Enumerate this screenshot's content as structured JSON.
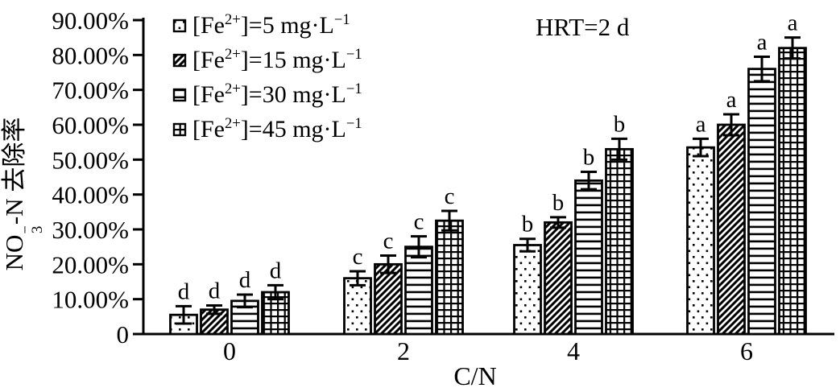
{
  "figure": {
    "annotation": "HRT=2 d",
    "x_axis_label": "C/N",
    "y_axis_label": {
      "pre": "NO",
      "sub": "3",
      "sup": "−",
      "post": "-N 去除率"
    }
  },
  "legend": {
    "items": [
      {
        "pattern": "dots",
        "pre": "[Fe",
        "sup1": "2+",
        "mid": "]=5 mg·L",
        "sup2": "−1"
      },
      {
        "pattern": "diag",
        "pre": "[Fe",
        "sup1": "2+",
        "mid": "]=15 mg·L",
        "sup2": "−1"
      },
      {
        "pattern": "hlines",
        "pre": "[Fe",
        "sup1": "2+",
        "mid": "]=30 mg·L",
        "sup2": "−1"
      },
      {
        "pattern": "grid",
        "pre": "[Fe",
        "sup1": "2+",
        "mid": "]=45 mg·L",
        "sup2": "−1"
      }
    ]
  },
  "chart_data": {
    "type": "bar",
    "title": "",
    "xlabel": "C/N",
    "ylabel": "NO3−-N 去除率",
    "annotation": "HRT=2 d",
    "categories": [
      "0",
      "2",
      "4",
      "6"
    ],
    "ylim": [
      0,
      90
    ],
    "yunit": "%",
    "ytick_labels": [
      "0",
      "10.00%",
      "20.00%",
      "30.00%",
      "40.00%",
      "50.00%",
      "60.00%",
      "70.00%",
      "80.00%",
      "90.00%"
    ],
    "grid": false,
    "legend_position": "upper-left-inside",
    "series": [
      {
        "key": "fe5",
        "name": "[Fe2+]=5 mg·L−1",
        "pattern": "dots",
        "values": [
          5.5,
          16.0,
          25.5,
          53.5
        ],
        "errors": [
          2.5,
          2.0,
          1.8,
          2.5
        ],
        "letters": [
          "d",
          "c",
          "b",
          "a"
        ]
      },
      {
        "key": "fe15",
        "name": "[Fe2+]=15 mg·L−1",
        "pattern": "diag",
        "values": [
          7.0,
          20.0,
          32.0,
          60.0
        ],
        "errors": [
          1.2,
          2.5,
          1.5,
          3.0
        ],
        "letters": [
          "d",
          "c",
          "b",
          "a"
        ]
      },
      {
        "key": "fe30",
        "name": "[Fe2+]=30 mg·L−1",
        "pattern": "hlines",
        "values": [
          9.5,
          25.0,
          44.0,
          76.0
        ],
        "errors": [
          1.8,
          3.0,
          2.5,
          3.5
        ],
        "letters": [
          "d",
          "c",
          "b",
          "a"
        ]
      },
      {
        "key": "fe45",
        "name": "[Fe2+]=45 mg·L−1",
        "pattern": "grid",
        "values": [
          12.0,
          32.5,
          53.0,
          82.0
        ],
        "errors": [
          2.0,
          2.8,
          3.0,
          3.0
        ],
        "letters": [
          "d",
          "c",
          "b",
          "a"
        ]
      }
    ]
  }
}
